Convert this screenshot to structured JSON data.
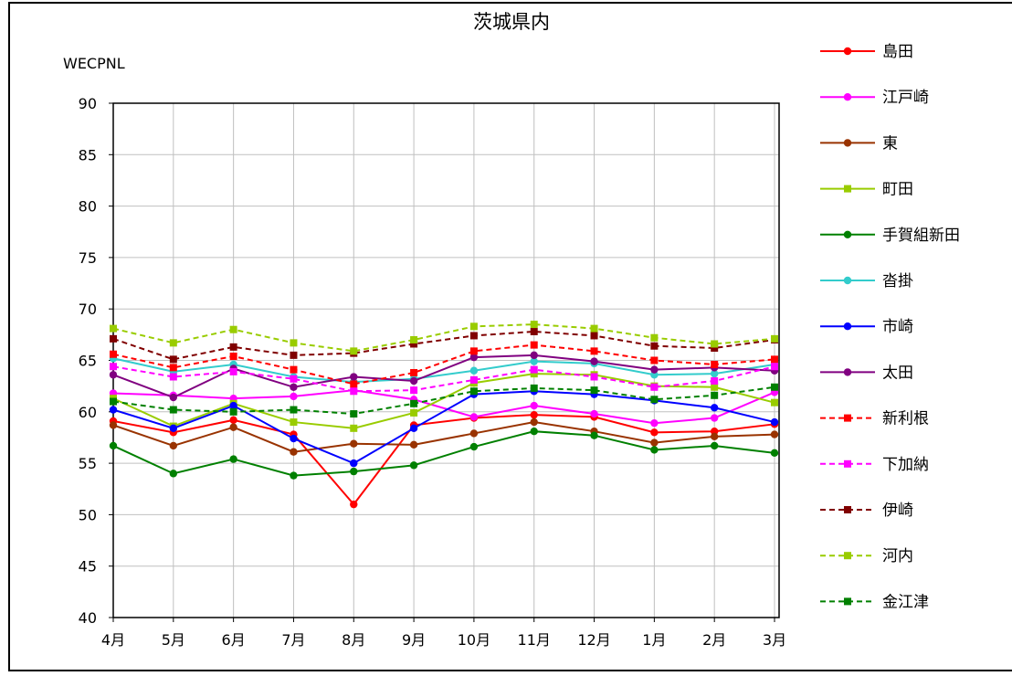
{
  "chart_data": {
    "type": "line",
    "title": "茨城県内",
    "ylabel": "WECPNL",
    "xlabel": "",
    "ylim": [
      40,
      90
    ],
    "yticks": [
      40,
      45,
      50,
      55,
      60,
      65,
      70,
      75,
      80,
      85,
      90
    ],
    "grid": true,
    "legend": "right",
    "categories": [
      "4月",
      "5月",
      "6月",
      "7月",
      "8月",
      "9月",
      "10月",
      "11月",
      "12月",
      "1月",
      "2月",
      "3月"
    ],
    "series": [
      {
        "name": "島田",
        "color": "#ff0000",
        "dash": false,
        "marker": "circle",
        "values": [
          59.1,
          58.0,
          59.2,
          57.8,
          51.0,
          58.7,
          59.4,
          59.7,
          59.5,
          58.0,
          58.1,
          58.8
        ]
      },
      {
        "name": "江戸崎",
        "color": "#ff00ff",
        "dash": false,
        "marker": "circle",
        "values": [
          61.8,
          61.6,
          61.3,
          61.5,
          62.1,
          61.2,
          59.5,
          60.6,
          59.8,
          58.9,
          59.4,
          61.9
        ]
      },
      {
        "name": "東",
        "color": "#993300",
        "dash": false,
        "marker": "circle",
        "values": [
          58.7,
          56.7,
          58.5,
          56.1,
          56.9,
          56.8,
          57.9,
          59.0,
          58.1,
          57.0,
          57.6,
          57.8
        ]
      },
      {
        "name": "町田",
        "color": "#99cc00",
        "dash": false,
        "marker": "square",
        "values": [
          61.3,
          58.6,
          60.8,
          59.0,
          58.4,
          59.9,
          62.8,
          63.7,
          63.6,
          62.5,
          62.4,
          60.9
        ]
      },
      {
        "name": "手賀組新田",
        "color": "#008000",
        "dash": false,
        "marker": "circle",
        "values": [
          56.7,
          54.0,
          55.4,
          53.8,
          54.2,
          54.8,
          56.6,
          58.1,
          57.7,
          56.3,
          56.7,
          56.0
        ]
      },
      {
        "name": "沓掛",
        "color": "#33cccc",
        "dash": false,
        "marker": "circle",
        "values": [
          65.2,
          63.9,
          64.6,
          63.4,
          62.9,
          63.2,
          64.0,
          64.9,
          64.7,
          63.6,
          63.7,
          64.6
        ]
      },
      {
        "name": "市崎",
        "color": "#0000ff",
        "dash": false,
        "marker": "circle",
        "values": [
          60.2,
          58.4,
          60.6,
          57.4,
          55.0,
          58.4,
          61.7,
          62.0,
          61.7,
          61.1,
          60.4,
          59.0
        ]
      },
      {
        "name": "太田",
        "color": "#800080",
        "dash": false,
        "marker": "circle",
        "values": [
          63.6,
          61.4,
          64.2,
          62.4,
          63.4,
          63.0,
          65.3,
          65.5,
          64.9,
          64.1,
          64.3,
          64.0
        ]
      },
      {
        "name": "新利根",
        "color": "#ff0000",
        "dash": true,
        "marker": "square",
        "values": [
          65.6,
          64.3,
          65.4,
          64.1,
          62.7,
          63.8,
          65.9,
          66.5,
          65.9,
          65.0,
          64.6,
          65.1
        ]
      },
      {
        "name": "下加納",
        "color": "#ff00ff",
        "dash": true,
        "marker": "square",
        "values": [
          64.4,
          63.4,
          63.9,
          63.2,
          62.0,
          62.1,
          63.1,
          64.1,
          63.4,
          62.4,
          63.0,
          64.4
        ]
      },
      {
        "name": "伊崎",
        "color": "#800000",
        "dash": true,
        "marker": "square",
        "values": [
          67.1,
          65.1,
          66.3,
          65.5,
          65.7,
          66.6,
          67.4,
          67.8,
          67.4,
          66.4,
          66.2,
          67.0
        ]
      },
      {
        "name": "河内",
        "color": "#99cc00",
        "dash": true,
        "marker": "square",
        "values": [
          68.1,
          66.7,
          68.0,
          66.7,
          65.9,
          67.0,
          68.3,
          68.5,
          68.1,
          67.2,
          66.6,
          67.1
        ]
      },
      {
        "name": "金江津",
        "color": "#008000",
        "dash": true,
        "marker": "square",
        "values": [
          61.0,
          60.2,
          60.0,
          60.2,
          59.8,
          60.8,
          62.0,
          62.3,
          62.1,
          61.2,
          61.6,
          62.4
        ]
      }
    ]
  }
}
